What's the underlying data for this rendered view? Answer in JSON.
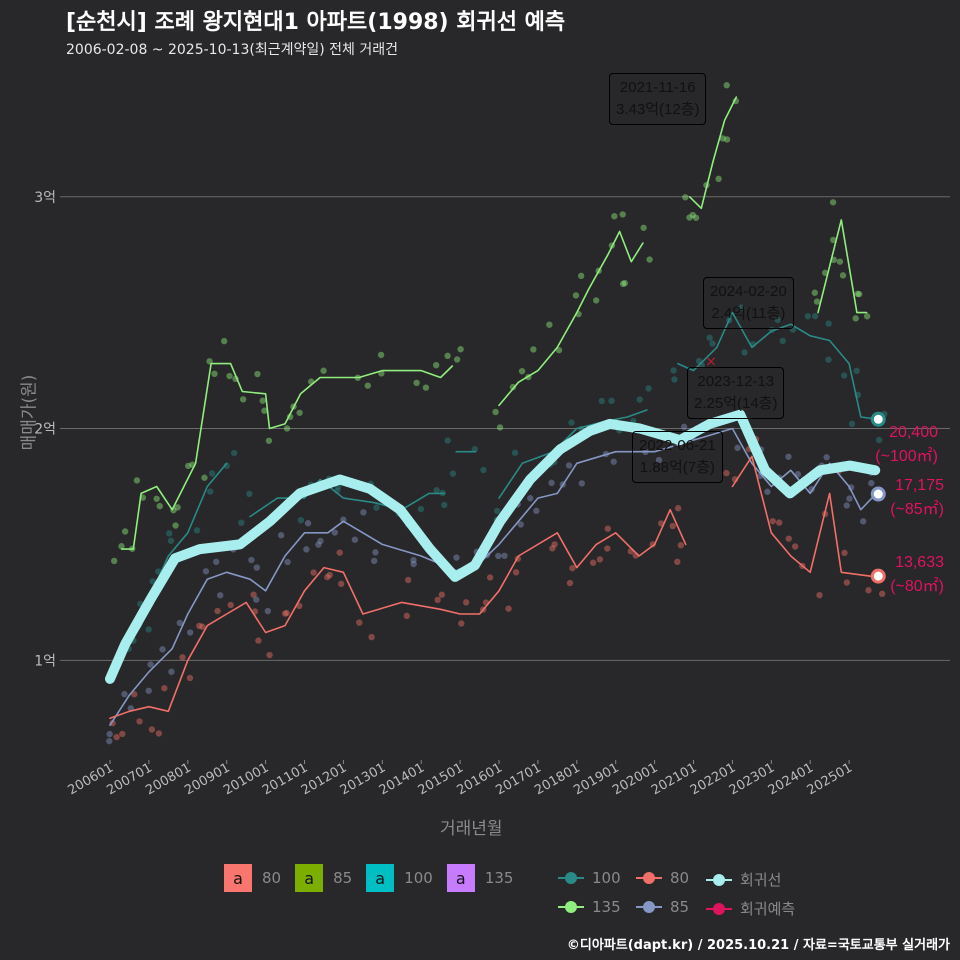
{
  "title": "[순천시] 조례 왕지현대1 아파트(1998) 회귀선 예측",
  "subtitle": "2006-02-08 ~ 2025-10-13(최근계약일) 전체 거래건",
  "credit": "©디아파트(dapt.kr) / 2025.10.21 / 자료=국토교통부 실거래가",
  "chart_data": {
    "type": "line",
    "xlabel": "거래년월",
    "ylabel": "매매가(원)",
    "ylim": [
      0.57,
      3.59
    ],
    "xlim": [
      2005.6,
      2026.3
    ],
    "yticks": [
      {
        "v": 1,
        "label": "1억"
      },
      {
        "v": 2,
        "label": "2억"
      },
      {
        "v": 3,
        "label": "3억"
      }
    ],
    "xticks": [
      "200601",
      "200701",
      "200801",
      "200901",
      "201001",
      "201101",
      "201201",
      "201301",
      "201401",
      "201501",
      "201601",
      "201701",
      "201801",
      "201901",
      "202001",
      "202101",
      "202201",
      "202301",
      "202401",
      "202501"
    ],
    "series": [
      {
        "name": "135",
        "color": "#90ee7e",
        "segments": [
          [
            [
              2006.3,
              1.48
            ],
            [
              2006.6,
              1.48
            ],
            [
              2006.8,
              1.72
            ],
            [
              2007.2,
              1.75
            ],
            [
              2007.6,
              1.65
            ],
            [
              2007.9,
              1.75
            ],
            [
              2008.2,
              1.85
            ],
            [
              2008.6,
              2.28
            ],
            [
              2009.1,
              2.28
            ],
            [
              2009.4,
              2.16
            ],
            [
              2010.0,
              2.15
            ],
            [
              2010.1,
              2.0
            ],
            [
              2010.5,
              2.02
            ],
            [
              2010.9,
              2.15
            ],
            [
              2011.4,
              2.22
            ],
            [
              2012.4,
              2.22
            ],
            [
              2013.0,
              2.25
            ],
            [
              2014.0,
              2.25
            ],
            [
              2014.5,
              2.22
            ],
            [
              2014.8,
              2.27
            ]
          ],
          [
            [
              2016.0,
              2.1
            ],
            [
              2016.5,
              2.2
            ],
            [
              2017.0,
              2.25
            ],
            [
              2017.5,
              2.35
            ],
            [
              2018.0,
              2.5
            ],
            [
              2018.3,
              2.6
            ],
            [
              2018.8,
              2.75
            ],
            [
              2019.1,
              2.85
            ],
            [
              2019.4,
              2.72
            ],
            [
              2019.7,
              2.8
            ]
          ],
          [
            [
              2020.9,
              3.0
            ],
            [
              2021.2,
              2.95
            ],
            [
              2021.5,
              3.15
            ],
            [
              2021.8,
              3.33
            ],
            [
              2022.1,
              3.43
            ]
          ],
          [
            [
              2024.2,
              2.5
            ],
            [
              2024.5,
              2.7
            ],
            [
              2024.8,
              2.9
            ],
            [
              2025.0,
              2.7
            ],
            [
              2025.2,
              2.5
            ],
            [
              2025.45,
              2.5
            ]
          ]
        ]
      },
      {
        "name": "100",
        "color": "#2a8a87",
        "segments": [
          [
            [
              2006.4,
              1.05
            ],
            [
              2006.8,
              1.15
            ],
            [
              2007.1,
              1.3
            ],
            [
              2007.5,
              1.45
            ],
            [
              2008.0,
              1.55
            ],
            [
              2008.5,
              1.75
            ],
            [
              2009.0,
              1.85
            ]
          ],
          [
            [
              2009.6,
              1.62
            ],
            [
              2010.3,
              1.7
            ],
            [
              2011.0,
              1.7
            ],
            [
              2011.4,
              1.78
            ],
            [
              2012.0,
              1.7
            ],
            [
              2012.8,
              1.68
            ],
            [
              2013.5,
              1.65
            ],
            [
              2014.2,
              1.72
            ],
            [
              2014.6,
              1.72
            ]
          ],
          [
            [
              2014.9,
              1.9
            ],
            [
              2015.4,
              1.9
            ]
          ],
          [
            [
              2016.0,
              1.7
            ],
            [
              2016.6,
              1.85
            ],
            [
              2017.4,
              1.9
            ],
            [
              2018.0,
              2.0
            ],
            [
              2018.7,
              2.03
            ],
            [
              2019.3,
              2.05
            ],
            [
              2019.8,
              2.08
            ]
          ],
          [
            [
              2020.6,
              2.28
            ],
            [
              2021.0,
              2.25
            ],
            [
              2021.6,
              2.35
            ],
            [
              2022.0,
              2.5
            ],
            [
              2022.5,
              2.35
            ],
            [
              2023.0,
              2.42
            ],
            [
              2023.5,
              2.45
            ],
            [
              2024.0,
              2.4
            ],
            [
              2024.5,
              2.38
            ],
            [
              2025.0,
              2.28
            ],
            [
              2025.3,
              2.05
            ],
            [
              2025.75,
              2.04
            ]
          ]
        ]
      },
      {
        "name": "85",
        "color": "#8597c5",
        "segments": [
          [
            [
              2006.0,
              0.72
            ],
            [
              2006.5,
              0.85
            ],
            [
              2007.0,
              0.95
            ],
            [
              2007.6,
              1.05
            ],
            [
              2008.0,
              1.2
            ],
            [
              2008.5,
              1.35
            ],
            [
              2009.0,
              1.38
            ],
            [
              2009.6,
              1.35
            ],
            [
              2010.0,
              1.3
            ],
            [
              2010.5,
              1.45
            ],
            [
              2011.0,
              1.55
            ],
            [
              2011.6,
              1.55
            ],
            [
              2012.0,
              1.6
            ],
            [
              2012.5,
              1.55
            ],
            [
              2013.0,
              1.5
            ],
            [
              2014.0,
              1.45
            ],
            [
              2015.0,
              1.38
            ],
            [
              2015.5,
              1.42
            ],
            [
              2016.0,
              1.5
            ],
            [
              2016.5,
              1.6
            ],
            [
              2017.0,
              1.7
            ],
            [
              2017.5,
              1.72
            ],
            [
              2018.0,
              1.85
            ],
            [
              2019.0,
              1.9
            ],
            [
              2020.0,
              1.9
            ],
            [
              2021.0,
              1.95
            ],
            [
              2022.0,
              2.0
            ],
            [
              2022.5,
              1.85
            ],
            [
              2023.0,
              1.75
            ],
            [
              2023.5,
              1.82
            ],
            [
              2024.0,
              1.72
            ],
            [
              2024.5,
              1.85
            ],
            [
              2025.0,
              1.75
            ],
            [
              2025.3,
              1.65
            ],
            [
              2025.7,
              1.72
            ]
          ]
        ]
      },
      {
        "name": "80",
        "color": "#f07069",
        "segments": [
          [
            [
              2006.0,
              0.75
            ],
            [
              2006.5,
              0.78
            ],
            [
              2007.0,
              0.8
            ],
            [
              2007.5,
              0.78
            ],
            [
              2008.0,
              1.0
            ],
            [
              2008.5,
              1.15
            ],
            [
              2009.0,
              1.2
            ],
            [
              2009.5,
              1.25
            ],
            [
              2010.0,
              1.12
            ],
            [
              2010.5,
              1.15
            ],
            [
              2011.0,
              1.3
            ],
            [
              2011.5,
              1.4
            ],
            [
              2012.0,
              1.38
            ],
            [
              2012.5,
              1.2
            ],
            [
              2013.5,
              1.25
            ],
            [
              2014.5,
              1.22
            ],
            [
              2015.0,
              1.2
            ],
            [
              2015.5,
              1.2
            ],
            [
              2016.0,
              1.3
            ],
            [
              2016.5,
              1.45
            ],
            [
              2017.5,
              1.55
            ],
            [
              2018.0,
              1.4
            ],
            [
              2018.5,
              1.5
            ],
            [
              2019.0,
              1.55
            ],
            [
              2019.6,
              1.45
            ],
            [
              2020.0,
              1.5
            ],
            [
              2020.4,
              1.65
            ],
            [
              2020.8,
              1.5
            ]
          ],
          [
            [
              2022.0,
              1.75
            ],
            [
              2022.5,
              1.88
            ],
            [
              2023.0,
              1.55
            ],
            [
              2023.5,
              1.45
            ],
            [
              2024.0,
              1.38
            ],
            [
              2024.5,
              1.72
            ],
            [
              2024.8,
              1.38
            ],
            [
              2025.7,
              1.36
            ]
          ]
        ]
      },
      {
        "name": "회귀선",
        "color": "#a8eeee",
        "segments": [
          [
            [
              2006.0,
              0.92
            ],
            [
              2006.39,
              1.07
            ],
            [
              2007.03,
              1.26
            ],
            [
              2007.67,
              1.44
            ],
            [
              2008.31,
              1.48
            ],
            [
              2009.34,
              1.5
            ],
            [
              2010.11,
              1.6
            ],
            [
              2010.88,
              1.72
            ],
            [
              2011.91,
              1.78
            ],
            [
              2012.68,
              1.74
            ],
            [
              2013.46,
              1.65
            ],
            [
              2014.23,
              1.48
            ],
            [
              2014.87,
              1.36
            ],
            [
              2015.38,
              1.41
            ],
            [
              2016.03,
              1.6
            ],
            [
              2016.8,
              1.78
            ],
            [
              2017.57,
              1.91
            ],
            [
              2018.34,
              1.99
            ],
            [
              2018.85,
              2.02
            ],
            [
              2019.62,
              2.0
            ],
            [
              2020.65,
              1.95
            ],
            [
              2021.42,
              2.02
            ],
            [
              2022.2,
              2.06
            ],
            [
              2022.84,
              1.82
            ],
            [
              2023.48,
              1.72
            ],
            [
              2024.25,
              1.82
            ],
            [
              2025.02,
              1.84
            ],
            [
              2025.67,
              1.82
            ]
          ]
        ]
      }
    ],
    "forecast": [
      {
        "area": "100",
        "value": 2.04,
        "label": "20,400",
        "sub": "(~100㎡)",
        "color": "#2a8a87"
      },
      {
        "area": "85",
        "value": 1.7175,
        "label": "17,175",
        "sub": "(~85㎡)",
        "color": "#8597c5"
      },
      {
        "area": "80",
        "value": 1.3633,
        "label": "13,633",
        "sub": "(~80㎡)",
        "color": "#f07069"
      }
    ],
    "forecast_x": 2025.75,
    "annotations": [
      {
        "date": "2021-11-16",
        "price": "3.43억(12층)",
        "color": "#c77cff"
      },
      {
        "date": "2024-02-20",
        "price": "2.4억(11층)",
        "color": "#00bfc4"
      },
      {
        "date": "2023-12-13",
        "price": "2.25억(14층)",
        "color": "#7cae00"
      },
      {
        "date": "2022-06-21",
        "price": "1.88억(7층)",
        "color": "#f8766d"
      }
    ],
    "legend_fill": [
      {
        "label": "80",
        "color": "#f8766d"
      },
      {
        "label": "85",
        "color": "#7cae00"
      },
      {
        "label": "100",
        "color": "#00bfc4"
      },
      {
        "label": "135",
        "color": "#c77cff"
      }
    ],
    "legend_key": "a",
    "legend_line": [
      {
        "label": "100",
        "color": "#2a8a87"
      },
      {
        "label": "80",
        "color": "#f07069"
      },
      {
        "label": "회귀선",
        "color": "#a8eeee"
      },
      {
        "label": "135",
        "color": "#90ee7e"
      },
      {
        "label": "85",
        "color": "#8597c5"
      },
      {
        "label": "회귀예측",
        "color": "#e0135f"
      }
    ]
  }
}
